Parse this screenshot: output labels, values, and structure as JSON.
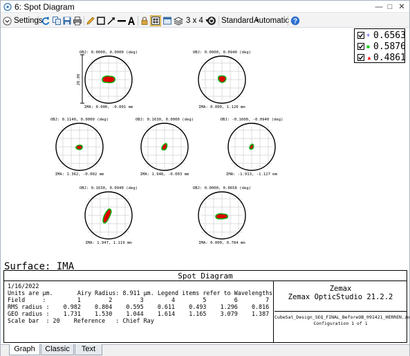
{
  "window": {
    "title": "6: Spot Diagram"
  },
  "toolbar": {
    "settings_label": "Settings",
    "layout_label": "3 x 4",
    "standard_label": "Standard",
    "automatic_label": "Automatic"
  },
  "legend": [
    {
      "value": "0.6563",
      "color": "#1a1aff",
      "marker": "+"
    },
    {
      "value": "0.5876",
      "color": "#00cc00",
      "marker": "■"
    },
    {
      "value": "0.4861",
      "color": "#ff0000",
      "marker": "▲"
    }
  ],
  "scale_label": "20.00",
  "spots": [
    {
      "obj": "OBJ: 0.0000, 0.0000 (deg)",
      "ima": "IMA: 0.000, -0.001 mm"
    },
    {
      "obj": "OBJ: 0.0000, 0.0940 (deg)",
      "ima": "IMA: 0.000, 1.120 mm"
    },
    {
      "obj": "OBJ: 0.1140, 0.0000 (deg)",
      "ima": "IMA: 1.362, -0.002 mm"
    },
    {
      "obj": "OBJ: 0.1630, 0.0000 (deg)",
      "ima": "IMA: 1.948, -0.003 mm"
    },
    {
      "obj": "OBJ: -0.1600, -0.0940 (deg)",
      "ima": "IMA: -1.913, -1.127 mm"
    },
    {
      "obj": "OBJ: 0.1630, 0.0940 (deg)",
      "ima": "IMA: 1.947, 1.119 mm"
    },
    {
      "obj": "OBJ: 0.0000, 0.0658 (deg)",
      "ima": "IMA: 0.000, 0.784 mm"
    }
  ],
  "surface_label": "Surface: IMA",
  "info": {
    "title": "Spot Diagram",
    "date": "1/16/2022",
    "units_line": "Units are µm.       Airy Radius: 8.911 µm. Legend items refer to Wavelengths",
    "field_line": "Field     :         1        2        3        4        5        6        7",
    "rms_line": "RMS radius :    0.982    0.804    0.595    0.611    0.493    1.296    0.816",
    "geo_line": "GEO radius :    1.731    1.530    1.044    1.614    1.165    3.079    1.387",
    "scale_line": "Scale bar  : 20    Reference   : Chief Ray",
    "company": "Zemax",
    "product": "Zemax OpticStudio 21.2.2",
    "filename": "CubeSat_Design_SEQ_FINAL_BeforeOB_091421_HERREN.zos",
    "configuration": "Configuration 1 of 1"
  },
  "tabs": [
    "Graph",
    "Classic",
    "Text"
  ]
}
